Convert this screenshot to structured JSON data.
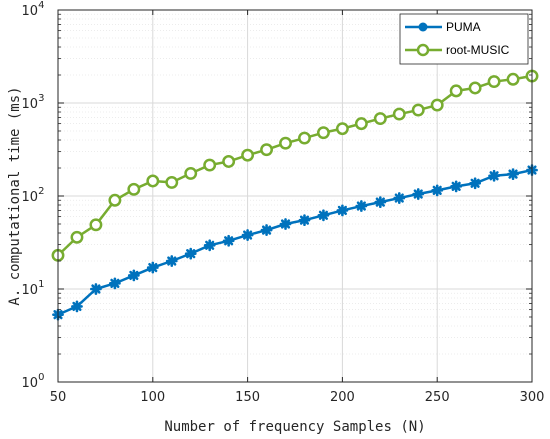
{
  "chart_data": {
    "type": "line",
    "xlabel": "Number of frequency Samples (N)",
    "ylabel": "A. computational time (ms)",
    "yscale": "log",
    "xlim": [
      50,
      300
    ],
    "ylim": [
      1,
      10000
    ],
    "grid": true,
    "legend_position": "top-right",
    "x_ticks": [
      "50",
      "100",
      "150",
      "200",
      "250",
      "300"
    ],
    "y_ticks": [
      {
        "base": "10",
        "exp": "0"
      },
      {
        "base": "10",
        "exp": "1"
      },
      {
        "base": "10",
        "exp": "2"
      },
      {
        "base": "10",
        "exp": "3"
      },
      {
        "base": "10",
        "exp": "4"
      }
    ],
    "x": [
      50,
      60,
      70,
      80,
      90,
      100,
      110,
      120,
      130,
      140,
      150,
      160,
      170,
      180,
      190,
      200,
      210,
      220,
      230,
      240,
      250,
      260,
      270,
      280,
      290,
      300
    ],
    "series": [
      {
        "name": "PUMA",
        "color": "#0072BD",
        "marker": "asterisk",
        "values": [
          5.3,
          6.5,
          10,
          11.5,
          14,
          17,
          20,
          24,
          29.5,
          33,
          38,
          43,
          50,
          55,
          62,
          70,
          78,
          86,
          95,
          105,
          115,
          127,
          137,
          165,
          172,
          190
        ]
      },
      {
        "name": "root-MUSIC",
        "color": "#77AC30",
        "marker": "circle",
        "values": [
          23,
          36,
          49,
          90,
          118,
          145,
          140,
          175,
          215,
          235,
          275,
          315,
          370,
          420,
          480,
          530,
          600,
          680,
          760,
          840,
          950,
          1350,
          1450,
          1700,
          1800,
          1950
        ]
      }
    ]
  }
}
